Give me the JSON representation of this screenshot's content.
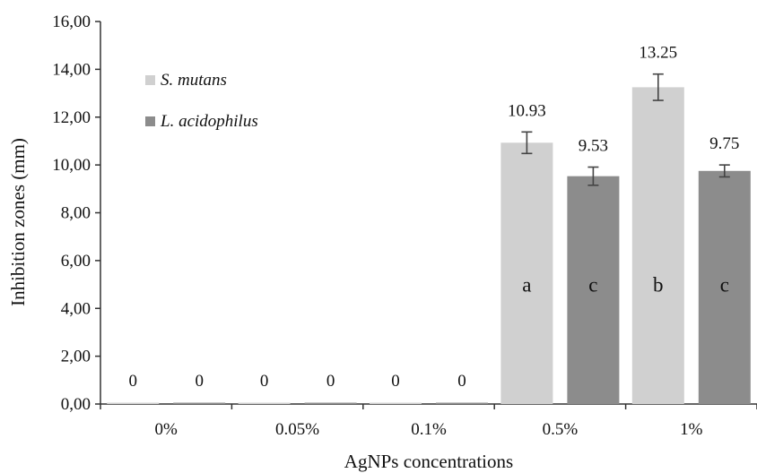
{
  "chart_data": {
    "type": "bar",
    "title": "",
    "xlabel": "AgNPs concentrations",
    "ylabel": "Inhibition zones (mm)",
    "ylim": [
      0,
      16
    ],
    "yticks": [
      "0,00",
      "2,00",
      "4,00",
      "6,00",
      "8,00",
      "10,00",
      "12,00",
      "14,00",
      "16,00"
    ],
    "categories": [
      "0%",
      "0.05%",
      "0.1%",
      "0.5%",
      "1%"
    ],
    "grid": false,
    "legend_position": "top-left",
    "series": [
      {
        "name": "S. mutans",
        "color": "#d0d0d0",
        "values": [
          0,
          0,
          0,
          10.93,
          13.25
        ],
        "errors": [
          0,
          0,
          0,
          0.45,
          0.55
        ],
        "value_labels": [
          "0",
          "0",
          "0",
          "10.93",
          "13.25"
        ],
        "letters": [
          "",
          "",
          "",
          "a",
          "b"
        ]
      },
      {
        "name": "L. acidophilus",
        "color": "#8c8c8c",
        "values": [
          0,
          0,
          0,
          9.53,
          9.75
        ],
        "errors": [
          0,
          0,
          0,
          0.38,
          0.25
        ],
        "value_labels": [
          "0",
          "0",
          "0",
          "9.53",
          "9.75"
        ],
        "letters": [
          "",
          "",
          "",
          "c",
          "c"
        ]
      }
    ]
  }
}
